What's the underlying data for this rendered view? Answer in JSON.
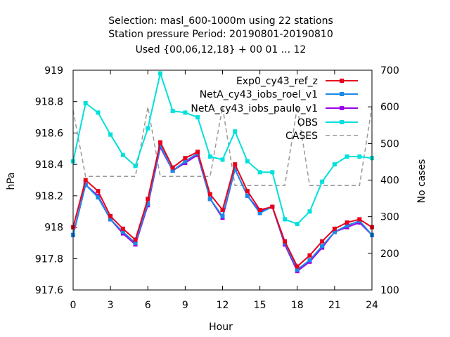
{
  "chart_data": {
    "type": "line",
    "title_lines": [
      "Selection: masl_600-1000m using    22 stations",
      "Station pressure   Period: 20190801-20190810",
      "Used {00,06,12,18} + 00 01 ... 12"
    ],
    "xlabel": "Hour",
    "ylabel": "hPa",
    "y2label": "No cases",
    "xlim": [
      0,
      24
    ],
    "ylim": [
      917.6,
      919
    ],
    "y2lim": [
      100,
      700
    ],
    "xticks": [
      0,
      3,
      6,
      9,
      12,
      15,
      18,
      21,
      24
    ],
    "yticks": [
      917.6,
      917.8,
      918,
      918.2,
      918.4,
      918.6,
      918.8,
      919
    ],
    "ytick_labels": [
      "917.6",
      "917.8",
      "918",
      "918.2",
      "918.4",
      "918.6",
      "918.8",
      "919"
    ],
    "y2ticks": [
      100,
      200,
      300,
      400,
      500,
      600,
      700
    ],
    "grid": false,
    "legend_position": "top-right",
    "x": [
      0,
      1,
      2,
      3,
      4,
      5,
      6,
      7,
      8,
      9,
      10,
      11,
      12,
      13,
      14,
      15,
      16,
      17,
      18,
      19,
      20,
      21,
      22,
      23,
      24
    ],
    "series": [
      {
        "name": "Exp0_cy43_ref_z",
        "color": "#e8001c",
        "marker": "filled-square",
        "axis": "y1",
        "values": [
          918.0,
          918.3,
          918.23,
          918.07,
          917.99,
          917.92,
          918.18,
          918.54,
          918.38,
          918.44,
          918.48,
          918.21,
          918.11,
          918.4,
          918.23,
          918.11,
          918.13,
          917.91,
          917.75,
          917.82,
          917.91,
          917.99,
          918.03,
          918.05,
          918.0
        ]
      },
      {
        "name": "NetA_cy43_iobs_roel_v1",
        "color": "#1a8ae8",
        "marker": "filled-square",
        "axis": "y1",
        "values": [
          917.95,
          918.27,
          918.19,
          918.05,
          917.97,
          917.9,
          918.15,
          918.52,
          918.36,
          918.42,
          918.47,
          918.18,
          918.07,
          918.37,
          918.2,
          918.09,
          918.13,
          917.9,
          917.73,
          917.79,
          917.88,
          917.97,
          918.01,
          918.04,
          917.95
        ]
      },
      {
        "name": "NetA_cy43_iobs_paulo_v1",
        "color": "#9b00e8",
        "marker": "filled-square",
        "axis": "y1",
        "values": [
          917.95,
          918.27,
          918.2,
          918.05,
          917.96,
          917.89,
          918.14,
          918.51,
          918.36,
          918.41,
          918.46,
          918.18,
          918.06,
          918.37,
          918.2,
          918.1,
          918.13,
          917.89,
          917.72,
          917.78,
          917.87,
          917.97,
          918.0,
          918.03,
          917.95
        ]
      },
      {
        "name": "OBS",
        "color": "#00e0dc",
        "marker": "filled-square",
        "axis": "y1",
        "values": [
          918.42,
          918.79,
          918.73,
          918.59,
          918.46,
          918.39,
          918.63,
          918.98,
          918.74,
          918.73,
          918.7,
          918.45,
          918.43,
          918.61,
          918.42,
          918.35,
          918.35,
          918.05,
          918.02,
          918.1,
          918.29,
          918.4,
          918.45,
          918.45,
          918.44
        ]
      },
      {
        "name": "CASES",
        "color": "#999999",
        "marker": "none",
        "dashed": true,
        "axis": "y2",
        "values": [
          590,
          410,
          410,
          410,
          410,
          410,
          600,
          410,
          410,
          410,
          410,
          410,
          600,
          385,
          385,
          385,
          385,
          385,
          600,
          385,
          385,
          385,
          385,
          385,
          600
        ]
      }
    ]
  }
}
